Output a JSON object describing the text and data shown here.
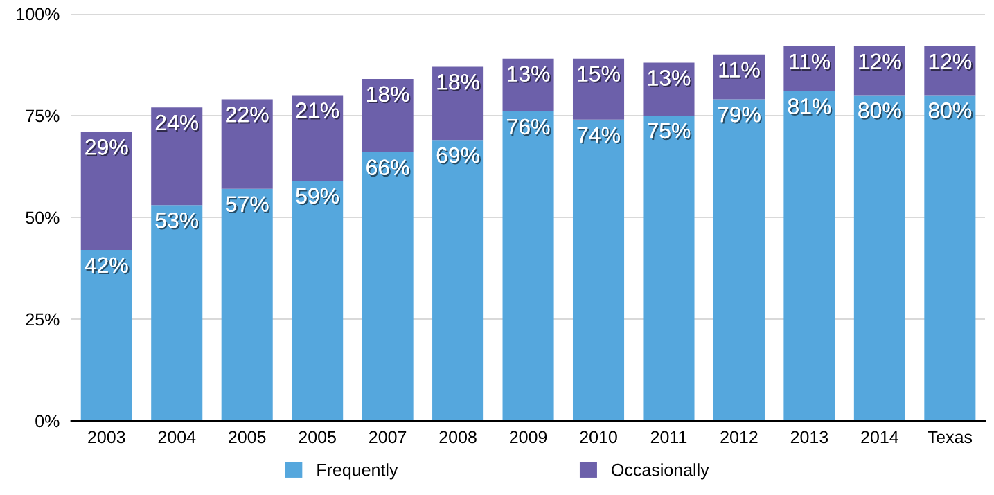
{
  "chart_data": {
    "type": "bar",
    "stacked": true,
    "categories": [
      "2003",
      "2004",
      "2005",
      "2005",
      "2007",
      "2008",
      "2009",
      "2010",
      "2011",
      "2012",
      "2013",
      "2014",
      "Texas"
    ],
    "series": [
      {
        "name": "Frequently",
        "color": "#55a7dd",
        "values": [
          42,
          53,
          57,
          59,
          66,
          69,
          76,
          74,
          75,
          79,
          81,
          80,
          80
        ],
        "value_labels": [
          "42%",
          "53%",
          "57%",
          "59%",
          "66%",
          "69%",
          "76%",
          "74%",
          "75%",
          "79%",
          "81%",
          "80%",
          "80%"
        ]
      },
      {
        "name": "Occasionally",
        "color": "#6c60aa",
        "values": [
          29,
          24,
          22,
          21,
          18,
          18,
          13,
          15,
          13,
          11,
          11,
          12,
          12
        ],
        "value_labels": [
          "29%",
          "24%",
          "22%",
          "21%",
          "18%",
          "18%",
          "13%",
          "15%",
          "13%",
          "11%",
          "11%",
          "12%",
          "12%"
        ]
      }
    ],
    "ylim": [
      0,
      100
    ],
    "yticks": [
      {
        "value": 0,
        "label": "0%"
      },
      {
        "value": 25,
        "label": "25%"
      },
      {
        "value": 50,
        "label": "50%"
      },
      {
        "value": 75,
        "label": "75%"
      },
      {
        "value": 100,
        "label": "100%"
      }
    ],
    "grid": "y",
    "legend": "bottom"
  }
}
